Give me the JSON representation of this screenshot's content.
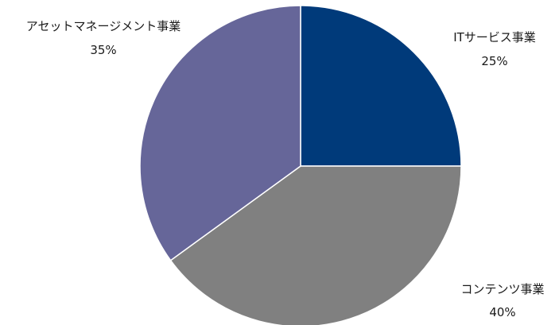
{
  "chart_data": {
    "type": "pie",
    "start_angle_deg": 0,
    "direction": "clockwise",
    "slices": [
      {
        "label": "ITサービス事業",
        "value": 25,
        "value_label": "25%",
        "color": "#003a7a"
      },
      {
        "label": "コンテンツ事業",
        "value": 40,
        "value_label": "40%",
        "color": "#808080"
      },
      {
        "label": "アセットマネージメント事業",
        "value": 35,
        "value_label": "35%",
        "color": "#666699"
      }
    ]
  }
}
